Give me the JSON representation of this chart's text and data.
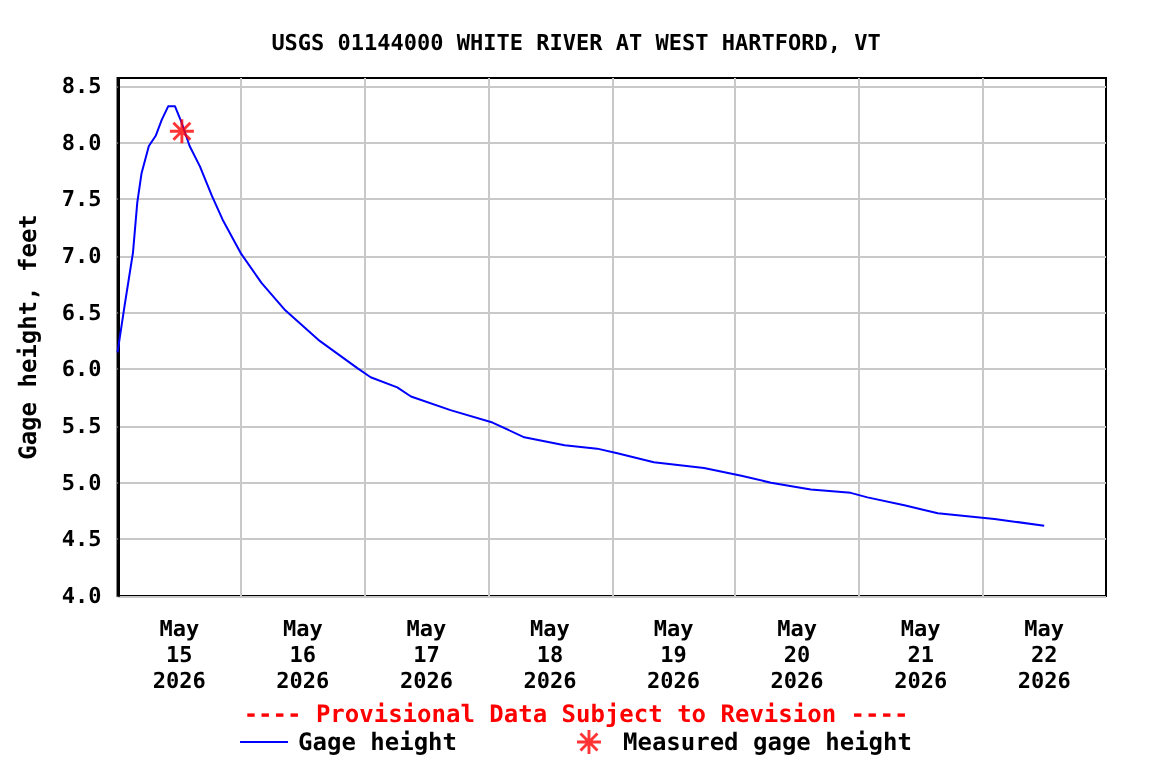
{
  "chart_data": {
    "type": "line",
    "title": "USGS 01144000 WHITE RIVER AT WEST HARTFORD, VT",
    "ylabel": "Gage height, feet",
    "annotations": [
      "---- Provisional Data Subject to Revision ----"
    ],
    "xlim": [
      "2026-05-15",
      "2026-05-23"
    ],
    "xticks": [
      {
        "value": "2026-05-15T12:00",
        "label": "May\n15\n2026"
      },
      {
        "value": "2026-05-16T12:00",
        "label": "May\n16\n2026"
      },
      {
        "value": "2026-05-17T12:00",
        "label": "May\n17\n2026"
      },
      {
        "value": "2026-05-18T12:00",
        "label": "May\n18\n2026"
      },
      {
        "value": "2026-05-19T12:00",
        "label": "May\n19\n2026"
      },
      {
        "value": "2026-05-20T12:00",
        "label": "May\n20\n2026"
      },
      {
        "value": "2026-05-21T12:00",
        "label": "May\n21\n2026"
      },
      {
        "value": "2026-05-22T12:00",
        "label": "May\n22\n2026"
      },
      {
        "value": "2026-05-16",
        "label": null
      },
      {
        "value": "2026-05-17",
        "label": null
      },
      {
        "value": "2026-05-18",
        "label": null
      },
      {
        "value": "2026-05-19",
        "label": null
      },
      {
        "value": "2026-05-20",
        "label": null
      },
      {
        "value": "2026-05-21",
        "label": null
      },
      {
        "value": "2026-05-22",
        "label": null
      }
    ],
    "ylim": [
      4,
      8.57
    ],
    "yticks": [
      {
        "value": 4,
        "label": "4.0"
      },
      {
        "value": 4.5,
        "label": "4.5"
      },
      {
        "value": 5,
        "label": "5.0"
      },
      {
        "value": 5.5,
        "label": "5.5"
      },
      {
        "value": 6,
        "label": "6.0"
      },
      {
        "value": 6.5,
        "label": "6.5"
      },
      {
        "value": 7,
        "label": "7.0"
      },
      {
        "value": 7.5,
        "label": "7.5"
      },
      {
        "value": 8,
        "label": "8.0"
      },
      {
        "value": 8.5,
        "label": "8.5"
      }
    ],
    "grid": true,
    "legend": "bottom",
    "series": [
      {
        "name": "Gage height",
        "color": "#0000ff",
        "marker": "none",
        "x": [
          "2026-05-15T00:00",
          "2026-05-15T01:20",
          "2026-05-15T02:10",
          "2026-05-15T03:00",
          "2026-05-15T03:50",
          "2026-05-15T04:40",
          "2026-05-15T06:05",
          "2026-05-15T07:25",
          "2026-05-15T08:35",
          "2026-05-15T09:50",
          "2026-05-15T11:10",
          "2026-05-15T12:25",
          "2026-05-15T14:00",
          "2026-05-15T16:00",
          "2026-05-15T18:20",
          "2026-05-15T20:25",
          "2026-05-16T00:00",
          "2026-05-16T04:00",
          "2026-05-16T08:35",
          "2026-05-16T15:00",
          "2026-05-16T22:35",
          "2026-05-17T01:10",
          "2026-05-17T06:20",
          "2026-05-17T09:00",
          "2026-05-17T16:40",
          "2026-05-18T00:50",
          "2026-05-18T07:00",
          "2026-05-18T14:50",
          "2026-05-18T21:10",
          "2026-05-19T01:05",
          "2026-05-19T08:10",
          "2026-05-19T17:55",
          "2026-05-20T01:10",
          "2026-05-20T06:55",
          "2026-05-20T14:40",
          "2026-05-20T22:25",
          "2026-05-21T01:40",
          "2026-05-21T08:50",
          "2026-05-21T15:20",
          "2026-05-22T02:20",
          "2026-05-22T12:00"
        ],
        "values": [
          6.15,
          6.55,
          6.79,
          7.03,
          7.47,
          7.73,
          7.97,
          8.06,
          8.2,
          8.32,
          8.32,
          8.18,
          7.97,
          7.79,
          7.53,
          7.32,
          7.02,
          6.76,
          6.52,
          6.26,
          6.01,
          5.93,
          5.84,
          5.76,
          5.64,
          5.53,
          5.4,
          5.33,
          5.3,
          5.26,
          5.18,
          5.13,
          5.06,
          5.0,
          4.94,
          4.91,
          4.87,
          4.8,
          4.73,
          4.68,
          4.62
        ]
      },
      {
        "name": "Measured gage height",
        "type": "scatter",
        "color": "#ff0000",
        "marker": "star",
        "x": [
          "2026-05-15T12:30"
        ],
        "values": [
          8.1
        ]
      }
    ]
  }
}
